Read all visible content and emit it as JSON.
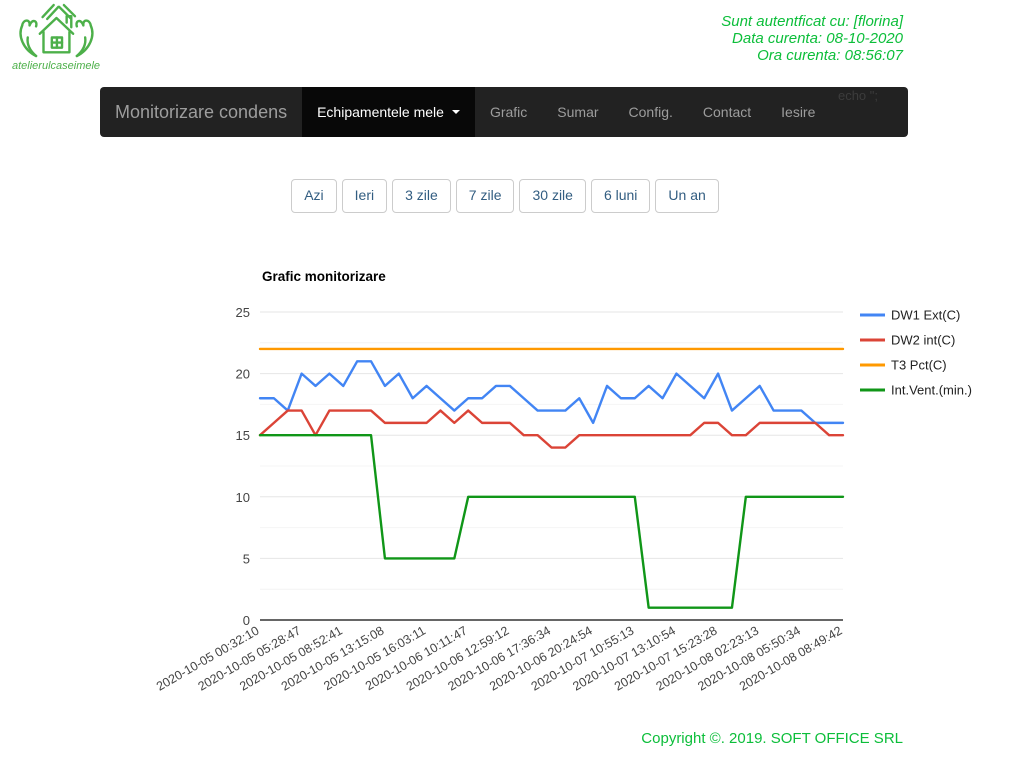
{
  "header": {
    "logo": {
      "brand_text": "atelierulcaseimele"
    },
    "session": {
      "line1": "Sunt autentficat cu: [florina]",
      "line2": "Data curenta: 08-10-2020",
      "line3": "Ora curenta: 08:56:07"
    }
  },
  "navbar": {
    "brand": "Monitorizare condens",
    "items": [
      {
        "label": "Echipamentele mele",
        "active": true,
        "caret": true
      },
      {
        "label": "Grafic",
        "active": false,
        "caret": false
      },
      {
        "label": "Sumar",
        "active": false,
        "caret": false
      },
      {
        "label": "Config.",
        "active": false,
        "caret": false
      },
      {
        "label": "Contact",
        "active": false,
        "caret": false
      },
      {
        "label": "Iesire",
        "active": false,
        "caret": false
      }
    ],
    "debug_text": "echo \";"
  },
  "range_buttons": [
    "Azi",
    "Ieri",
    "3 zile",
    "7 zile",
    "30 zile",
    "6 luni",
    "Un an"
  ],
  "chart_data": {
    "type": "line",
    "title": "Grafic monitorizare",
    "xlabel": "",
    "ylabel": "",
    "ylim": [
      0,
      25
    ],
    "yticks": [
      0,
      5,
      10,
      15,
      20,
      25
    ],
    "yticks_minor": [
      2.5,
      7.5,
      12.5,
      17.5,
      22.5
    ],
    "grid": true,
    "legend_position": "right",
    "x_tick_every": 3,
    "x_labels": [
      "2020-10-05 00:32:10",
      "2020-10-05 05:28:47",
      "2020-10-05 08:52:41",
      "2020-10-05 13:15:08",
      "2020-10-05 16:03:11",
      "2020-10-06 10:11:47",
      "2020-10-06 12:59:12",
      "2020-10-06 17:36:34",
      "2020-10-06 20:24:54",
      "2020-10-07 10:55:13",
      "2020-10-07 13:10:54",
      "2020-10-07 15:23:28",
      "2020-10-08 02:23:13",
      "2020-10-08 05:50:34",
      "2020-10-08 08:49:42"
    ],
    "series": [
      {
        "name": "DW1 Ext(C)",
        "color": "#4285F4",
        "values": [
          18,
          18,
          17,
          20,
          19,
          20,
          19,
          21,
          21,
          19,
          20,
          18,
          19,
          18,
          17,
          18,
          18,
          19,
          19,
          18,
          17,
          17,
          17,
          18,
          16,
          19,
          18,
          18,
          19,
          18,
          20,
          19,
          18,
          20,
          17,
          18,
          19,
          17,
          17,
          17,
          16,
          16,
          16
        ]
      },
      {
        "name": "DW2 int(C)",
        "color": "#DB4437",
        "values": [
          15,
          16,
          17,
          17,
          15,
          17,
          17,
          17,
          17,
          16,
          16,
          16,
          16,
          17,
          16,
          17,
          16,
          16,
          16,
          15,
          15,
          14,
          14,
          15,
          15,
          15,
          15,
          15,
          15,
          15,
          15,
          15,
          16,
          16,
          15,
          15,
          16,
          16,
          16,
          16,
          16,
          15,
          15
        ]
      },
      {
        "name": "T3 Pct(C)",
        "color": "#FF9900",
        "values": [
          22,
          22,
          22,
          22,
          22,
          22,
          22,
          22,
          22,
          22,
          22,
          22,
          22,
          22,
          22,
          22,
          22,
          22,
          22,
          22,
          22,
          22,
          22,
          22,
          22,
          22,
          22,
          22,
          22,
          22,
          22,
          22,
          22,
          22,
          22,
          22,
          22,
          22,
          22,
          22,
          22,
          22,
          22
        ]
      },
      {
        "name": "Int.Vent.(min.)",
        "color": "#109618",
        "values": [
          15,
          15,
          15,
          15,
          15,
          15,
          15,
          15,
          15,
          5,
          5,
          5,
          5,
          5,
          5,
          10,
          10,
          10,
          10,
          10,
          10,
          10,
          10,
          10,
          10,
          10,
          10,
          10,
          1,
          1,
          1,
          1,
          1,
          1,
          1,
          10,
          10,
          10,
          10,
          10,
          10,
          10,
          10
        ]
      }
    ]
  },
  "footer": {
    "copyright": "Copyright ©. 2019. SOFT OFFICE SRL"
  },
  "colors": {
    "accent_green": "#0cbe3a",
    "logo_green": "#4db04a",
    "navbar_bg": "#222222",
    "navbar_active_bg": "#080808",
    "navbar_text": "#9d9d9d",
    "button_text": "#325d81",
    "button_border": "#cccccc",
    "axis_text": "#444444",
    "legend_text": "#222222",
    "grid_major": "#e6e6e6",
    "grid_minor": "#f4f4f4",
    "baseline": "#666666"
  }
}
